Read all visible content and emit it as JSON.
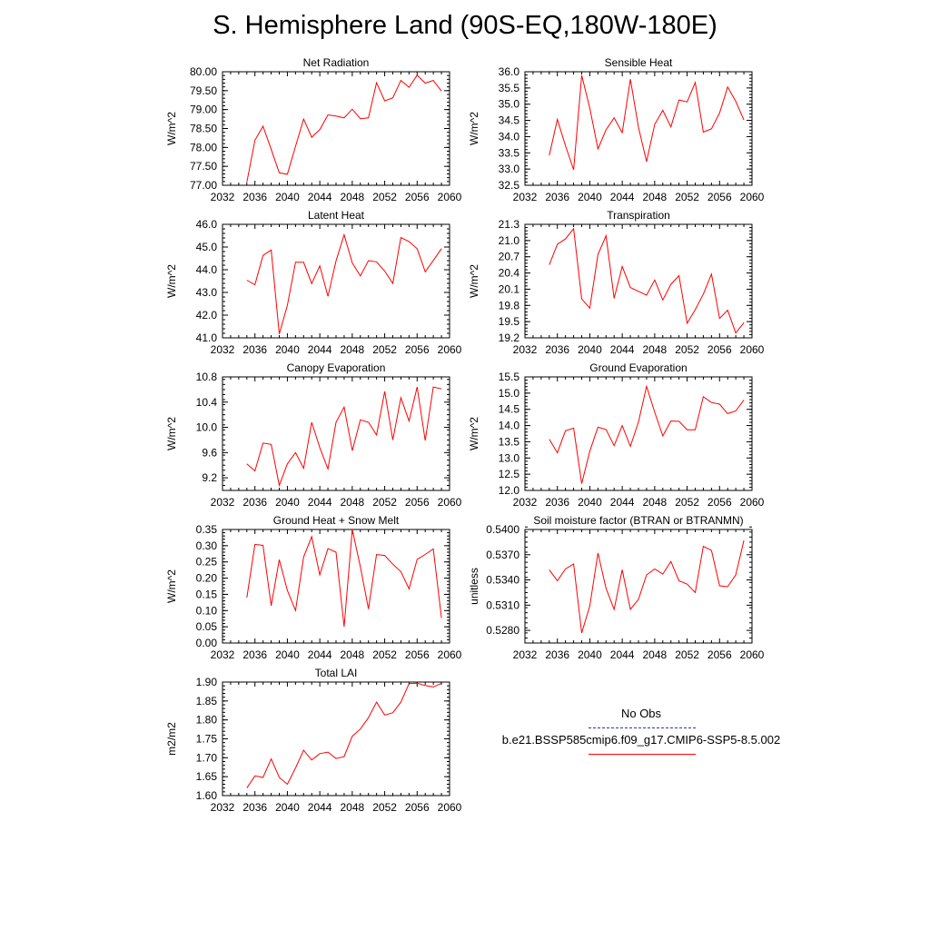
{
  "page_title": "S. Hemisphere Land (90S-EQ,180W-180E)",
  "legend": {
    "obs_label": "No Obs",
    "obs_color": "#3333aa",
    "model_label": "b.e21.BSSP585cmip6.f09_g17.CMIP6-SSP5-8.5.002",
    "model_color": "#ff0000"
  },
  "chart_data": [
    {
      "type": "line",
      "title": "Net Radiation",
      "ylabel": "W/m^2",
      "xlim": [
        2032,
        2060
      ],
      "x_ticks": [
        "2032",
        "2036",
        "2040",
        "2044",
        "2048",
        "2052",
        "2056",
        "2060"
      ],
      "ylim": [
        77.0,
        80.0
      ],
      "y_ticks": [
        "77.00",
        "77.50",
        "78.00",
        "78.50",
        "79.00",
        "79.50",
        "80.00"
      ],
      "series": [
        {
          "color": "#ff0000",
          "x": [
            2035,
            2036,
            2037,
            2038,
            2039,
            2040,
            2041,
            2042,
            2043,
            2044,
            2045,
            2046,
            2047,
            2048,
            2049,
            2050,
            2051,
            2052,
            2053,
            2054,
            2055,
            2056,
            2057,
            2058,
            2059
          ],
          "values": [
            77.08,
            78.19,
            78.56,
            77.95,
            77.33,
            77.29,
            78.03,
            78.75,
            78.27,
            78.47,
            78.86,
            78.83,
            78.78,
            79.01,
            78.76,
            78.78,
            79.71,
            79.23,
            79.31,
            79.77,
            79.59,
            79.91,
            79.7,
            79.77,
            79.49
          ]
        }
      ]
    },
    {
      "type": "line",
      "title": "Sensible Heat",
      "ylabel": "W/m^2",
      "xlim": [
        2032,
        2060
      ],
      "x_ticks": [
        "2032",
        "2036",
        "2040",
        "2044",
        "2048",
        "2052",
        "2056",
        "2060"
      ],
      "ylim": [
        32.5,
        36.0
      ],
      "y_ticks": [
        "32.5",
        "33.0",
        "33.5",
        "34.0",
        "34.5",
        "35.0",
        "35.5",
        "36.0"
      ],
      "series": [
        {
          "color": "#ff0000",
          "x": [
            2035,
            2036,
            2037,
            2038,
            2039,
            2040,
            2041,
            2042,
            2043,
            2044,
            2045,
            2046,
            2047,
            2048,
            2049,
            2050,
            2051,
            2052,
            2053,
            2054,
            2055,
            2056,
            2057,
            2058,
            2059
          ],
          "values": [
            33.42,
            34.53,
            33.72,
            32.98,
            35.89,
            34.88,
            33.62,
            34.21,
            34.58,
            34.12,
            35.77,
            34.29,
            33.23,
            34.38,
            34.81,
            34.3,
            35.13,
            35.07,
            35.67,
            34.14,
            34.24,
            34.73,
            35.53,
            35.09,
            34.51
          ]
        }
      ]
    },
    {
      "type": "line",
      "title": "Latent Heat",
      "ylabel": "W/m^2",
      "xlim": [
        2032,
        2060
      ],
      "x_ticks": [
        "2032",
        "2036",
        "2040",
        "2044",
        "2048",
        "2052",
        "2056",
        "2060"
      ],
      "ylim": [
        41.0,
        46.0
      ],
      "y_ticks": [
        "41.0",
        "42.0",
        "43.0",
        "44.0",
        "45.0",
        "46.0"
      ],
      "series": [
        {
          "color": "#ff0000",
          "x": [
            2035,
            2036,
            2037,
            2038,
            2039,
            2040,
            2041,
            2042,
            2043,
            2044,
            2045,
            2046,
            2047,
            2048,
            2049,
            2050,
            2051,
            2052,
            2053,
            2054,
            2055,
            2056,
            2057,
            2058,
            2059
          ],
          "values": [
            43.54,
            43.34,
            44.63,
            44.87,
            41.17,
            42.43,
            44.33,
            44.33,
            43.39,
            44.17,
            42.83,
            44.39,
            45.54,
            44.3,
            43.73,
            44.4,
            44.35,
            43.94,
            43.4,
            45.42,
            45.24,
            44.93,
            43.91,
            44.41,
            44.93
          ]
        }
      ]
    },
    {
      "type": "line",
      "title": "Transpiration",
      "ylabel": "W/m^2",
      "xlim": [
        2032,
        2060
      ],
      "x_ticks": [
        "2032",
        "2036",
        "2040",
        "2044",
        "2048",
        "2052",
        "2056",
        "2060"
      ],
      "ylim": [
        19.2,
        21.3
      ],
      "y_ticks": [
        "19.2",
        "19.5",
        "19.8",
        "20.1",
        "20.4",
        "20.7",
        "21.0",
        "21.3"
      ],
      "series": [
        {
          "color": "#ff0000",
          "x": [
            2035,
            2036,
            2037,
            2038,
            2039,
            2040,
            2041,
            2042,
            2043,
            2044,
            2045,
            2046,
            2047,
            2048,
            2049,
            2050,
            2051,
            2052,
            2053,
            2054,
            2055,
            2056,
            2057,
            2058,
            2059
          ],
          "values": [
            20.55,
            20.93,
            21.03,
            21.22,
            19.92,
            19.75,
            20.74,
            21.09,
            19.93,
            20.52,
            20.13,
            20.06,
            19.99,
            20.27,
            19.9,
            20.19,
            20.35,
            19.47,
            19.72,
            20.01,
            20.38,
            19.56,
            19.71,
            19.29,
            19.48
          ]
        }
      ]
    },
    {
      "type": "line",
      "title": "Canopy Evaporation",
      "ylabel": "W/m^2",
      "xlim": [
        2032,
        2060
      ],
      "x_ticks": [
        "2032",
        "2036",
        "2040",
        "2044",
        "2048",
        "2052",
        "2056",
        "2060"
      ],
      "ylim": [
        9.0,
        10.8
      ],
      "y_ticks": [
        "9.2",
        "9.6",
        "10.0",
        "10.4",
        "10.8"
      ],
      "series": [
        {
          "color": "#ff0000",
          "x": [
            2035,
            2036,
            2037,
            2038,
            2039,
            2040,
            2041,
            2042,
            2043,
            2044,
            2045,
            2046,
            2047,
            2048,
            2049,
            2050,
            2051,
            2052,
            2053,
            2054,
            2055,
            2056,
            2057,
            2058,
            2059
          ],
          "values": [
            9.42,
            9.31,
            9.75,
            9.73,
            9.08,
            9.42,
            9.6,
            9.35,
            10.08,
            9.68,
            9.34,
            10.08,
            10.32,
            9.63,
            10.12,
            10.08,
            9.88,
            10.57,
            9.8,
            10.47,
            10.1,
            10.64,
            9.79,
            10.64,
            10.61
          ]
        }
      ]
    },
    {
      "type": "line",
      "title": "Ground Evaporation",
      "ylabel": "W/m^2",
      "xlim": [
        2032,
        2060
      ],
      "x_ticks": [
        "2032",
        "2036",
        "2040",
        "2044",
        "2048",
        "2052",
        "2056",
        "2060"
      ],
      "ylim": [
        12.0,
        15.5
      ],
      "y_ticks": [
        "12.0",
        "12.5",
        "13.0",
        "13.5",
        "14.0",
        "14.5",
        "15.0",
        "15.5"
      ],
      "series": [
        {
          "color": "#ff0000",
          "x": [
            2035,
            2036,
            2037,
            2038,
            2039,
            2040,
            2041,
            2042,
            2043,
            2044,
            2045,
            2046,
            2047,
            2048,
            2049,
            2050,
            2051,
            2052,
            2053,
            2054,
            2055,
            2056,
            2057,
            2058,
            2059
          ],
          "values": [
            13.58,
            13.16,
            13.84,
            13.92,
            12.21,
            13.21,
            13.95,
            13.88,
            13.38,
            14.0,
            13.36,
            14.11,
            15.21,
            14.41,
            13.68,
            14.14,
            14.13,
            13.87,
            13.87,
            14.89,
            14.71,
            14.66,
            14.37,
            14.45,
            14.79
          ]
        }
      ]
    },
    {
      "type": "line",
      "title": "Ground Heat + Snow Melt",
      "ylabel": "W/m^2",
      "xlim": [
        2032,
        2060
      ],
      "x_ticks": [
        "2032",
        "2036",
        "2040",
        "2044",
        "2048",
        "2052",
        "2056",
        "2060"
      ],
      "ylim": [
        0.0,
        0.35
      ],
      "y_ticks": [
        "0.00",
        "0.05",
        "0.10",
        "0.15",
        "0.20",
        "0.25",
        "0.30",
        "0.35"
      ],
      "series": [
        {
          "color": "#ff0000",
          "x": [
            2035,
            2036,
            2037,
            2038,
            2039,
            2040,
            2041,
            2042,
            2043,
            2044,
            2045,
            2046,
            2047,
            2048,
            2049,
            2050,
            2051,
            2052,
            2053,
            2054,
            2055,
            2056,
            2057,
            2058,
            2059
          ],
          "values": [
            0.14,
            0.304,
            0.301,
            0.115,
            0.257,
            0.162,
            0.1,
            0.265,
            0.328,
            0.21,
            0.291,
            0.28,
            0.05,
            0.35,
            0.235,
            0.105,
            0.273,
            0.27,
            0.243,
            0.22,
            0.167,
            0.258,
            0.273,
            0.29,
            0.077
          ]
        }
      ]
    },
    {
      "type": "line",
      "title": "Soil moisture factor (BTRAN or BTRANMN)",
      "ylabel": "unitless",
      "xlim": [
        2032,
        2060
      ],
      "x_ticks": [
        "2032",
        "2036",
        "2040",
        "2044",
        "2048",
        "2052",
        "2056",
        "2060"
      ],
      "ylim": [
        0.5265,
        0.54
      ],
      "y_ticks": [
        "0.5280",
        "0.5310",
        "0.5340",
        "0.5370",
        "0.5400"
      ],
      "series": [
        {
          "color": "#ff0000",
          "x": [
            2035,
            2036,
            2037,
            2038,
            2039,
            2040,
            2041,
            2042,
            2043,
            2044,
            2045,
            2046,
            2047,
            2048,
            2049,
            2050,
            2051,
            2052,
            2053,
            2054,
            2055,
            2056,
            2057,
            2058,
            2059
          ],
          "values": [
            0.5352,
            0.5339,
            0.5353,
            0.5359,
            0.5277,
            0.5309,
            0.5372,
            0.533,
            0.5305,
            0.5352,
            0.5305,
            0.5317,
            0.5346,
            0.5353,
            0.5347,
            0.5362,
            0.5339,
            0.5335,
            0.5325,
            0.538,
            0.5375,
            0.5333,
            0.5332,
            0.5346,
            0.5387
          ]
        }
      ]
    },
    {
      "type": "line",
      "title": "Total LAI",
      "ylabel": "m2/m2",
      "xlim": [
        2032,
        2060
      ],
      "x_ticks": [
        "2032",
        "2036",
        "2040",
        "2044",
        "2048",
        "2052",
        "2056",
        "2060"
      ],
      "ylim": [
        1.6,
        1.9
      ],
      "y_ticks": [
        "1.60",
        "1.65",
        "1.70",
        "1.75",
        "1.80",
        "1.85",
        "1.90"
      ],
      "series": [
        {
          "color": "#ff0000",
          "x": [
            2035,
            2036,
            2037,
            2038,
            2039,
            2040,
            2041,
            2042,
            2043,
            2044,
            2045,
            2046,
            2047,
            2048,
            2049,
            2050,
            2051,
            2052,
            2053,
            2054,
            2055,
            2056,
            2057,
            2058,
            2059
          ],
          "values": [
            1.62,
            1.652,
            1.648,
            1.697,
            1.648,
            1.63,
            1.673,
            1.72,
            1.694,
            1.711,
            1.715,
            1.698,
            1.703,
            1.757,
            1.776,
            1.806,
            1.847,
            1.813,
            1.819,
            1.847,
            1.896,
            1.897,
            1.891,
            1.887,
            1.897
          ]
        }
      ]
    }
  ]
}
